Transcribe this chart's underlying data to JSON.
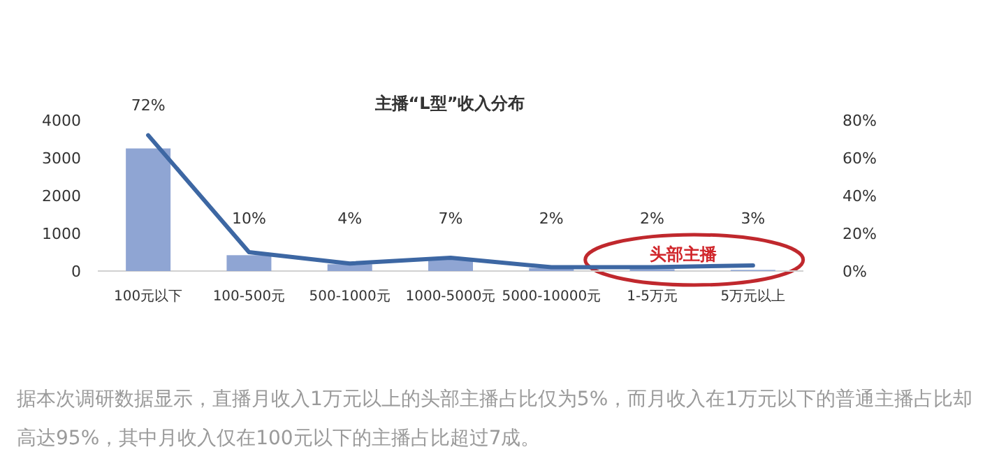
{
  "chart_data": {
    "type": "bar",
    "title": "主播“L型”收入分布",
    "categories": [
      "100元以下",
      "100-500元",
      "500-1000元",
      "1000-5000元",
      "5000-10000元",
      "1-5万元",
      "5万元以上"
    ],
    "series": [
      {
        "color": "#8fa5d3",
        "values": [
          3250,
          420,
          180,
          300,
          80,
          50,
          30
        ]
      },
      {
        "type": "line",
        "axis": "y2",
        "color": "#3d67a3",
        "values": [
          72,
          10,
          4,
          7,
          2,
          2,
          3
        ],
        "value_labels": [
          "72%",
          "10%",
          "4%",
          "7%",
          "2%",
          "2%",
          "3%"
        ]
      }
    ],
    "ylim": [
      0,
      4000
    ],
    "yticks": [
      0,
      1000,
      2000,
      3000,
      4000
    ],
    "y2lim": [
      0,
      80
    ],
    "y2ticks": [
      {
        "value": 0,
        "label": "0%"
      },
      {
        "value": 20,
        "label": "20%"
      },
      {
        "value": 40,
        "label": "40%"
      },
      {
        "value": 60,
        "label": "60%"
      },
      {
        "value": 80,
        "label": "80%"
      }
    ],
    "annotations": [
      "头部主播",
      "据本次调研数据显示，直播月收入1万元以上的头部主播占比仅为5%，而月收入在1万元以下的普通主播占比却高达95%，其中月收入仅在100元以下的主播占比超过7成。"
    ],
    "grid": false
  }
}
